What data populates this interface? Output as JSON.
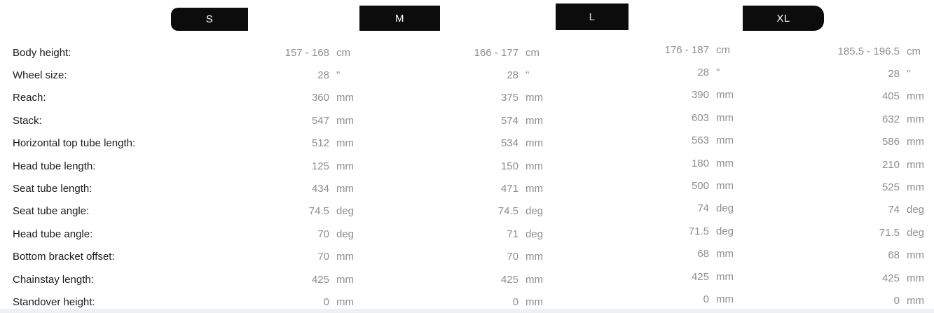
{
  "sizes": [
    {
      "label": "S"
    },
    {
      "label": "M"
    },
    {
      "label": "L"
    },
    {
      "label": "XL"
    }
  ],
  "rows": [
    {
      "label": "Body height:",
      "unit": "cm",
      "values": [
        "157 - 168",
        "166 - 177",
        "176 - 187",
        "185.5 - 196.5"
      ]
    },
    {
      "label": "Wheel size:",
      "unit": "\"",
      "values": [
        "28",
        "28",
        "28",
        "28"
      ]
    },
    {
      "label": "Reach:",
      "unit": "mm",
      "values": [
        "360",
        "375",
        "390",
        "405"
      ]
    },
    {
      "label": "Stack:",
      "unit": "mm",
      "values": [
        "547",
        "574",
        "603",
        "632"
      ]
    },
    {
      "label": "Horizontal top tube length:",
      "unit": "mm",
      "values": [
        "512",
        "534",
        "563",
        "586"
      ]
    },
    {
      "label": "Head tube length:",
      "unit": "mm",
      "values": [
        "125",
        "150",
        "180",
        "210"
      ]
    },
    {
      "label": "Seat tube length:",
      "unit": "mm",
      "values": [
        "434",
        "471",
        "500",
        "525"
      ]
    },
    {
      "label": "Seat tube angle:",
      "unit": "deg",
      "values": [
        "74.5",
        "74.5",
        "74",
        "74"
      ]
    },
    {
      "label": "Head tube angle:",
      "unit": "deg",
      "values": [
        "70",
        "71",
        "71.5",
        "71.5"
      ]
    },
    {
      "label": "Bottom bracket offset:",
      "unit": "mm",
      "values": [
        "70",
        "70",
        "68",
        "68"
      ]
    },
    {
      "label": "Chainstay length:",
      "unit": "mm",
      "values": [
        "425",
        "425",
        "425",
        "425"
      ]
    },
    {
      "label": "Standover height:",
      "unit": "mm",
      "values": [
        "0",
        "0",
        "0",
        "0"
      ]
    }
  ],
  "colors": {
    "badge_bg": "#0c0c0c",
    "badge_text": "#ffffff",
    "label_text": "#1c1c1c",
    "value_text": "#8e8e8e",
    "bottom_strip": "#eff0f1"
  }
}
